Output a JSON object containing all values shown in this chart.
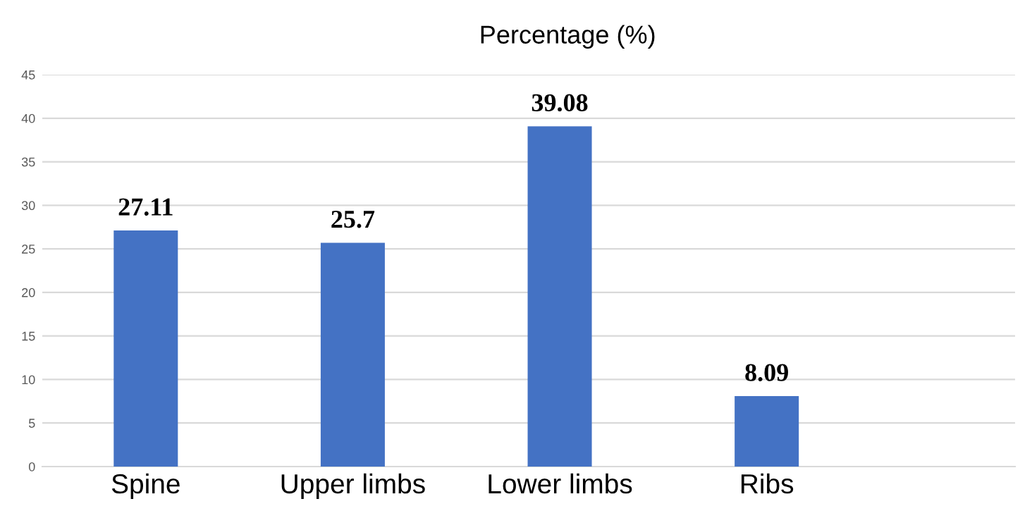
{
  "chart_data": {
    "type": "bar",
    "title": "Percentage (%)",
    "categories": [
      "Spine",
      "Upper limbs",
      "Lower limbs",
      "Ribs"
    ],
    "values": [
      27.11,
      25.7,
      39.08,
      8.09
    ],
    "color": "#4472c4",
    "ylim": [
      0,
      45
    ],
    "yticks": [
      0,
      5,
      10,
      15,
      20,
      25,
      30,
      35,
      40,
      45
    ],
    "grid": "y",
    "data_labels": true
  }
}
